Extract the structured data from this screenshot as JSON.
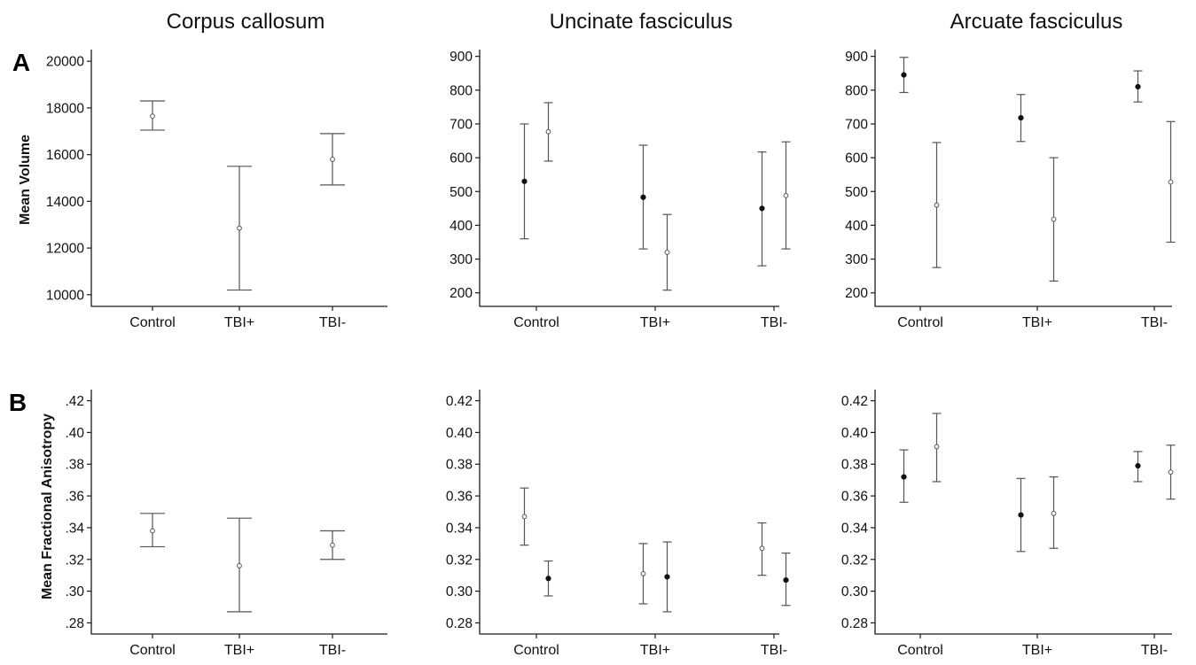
{
  "figure": {
    "column_titles": [
      "Corpus callosum",
      "Uncinate fasciculus",
      "Arcuate fasciculus"
    ],
    "row_labels": [
      "A",
      "B"
    ],
    "y_labels": [
      "Mean Volume",
      "Mean Fractional Anisotropy"
    ]
  },
  "chart_data": [
    {
      "type": "scatter",
      "title": "Corpus callosum",
      "ylabel": "Mean Volume",
      "categories": [
        "Control",
        "TBI+",
        "TBI-"
      ],
      "ylim": [
        9500,
        20500
      ],
      "yticks": [
        10000,
        12000,
        14000,
        16000,
        18000,
        20000
      ],
      "ytick_labels": [
        "10000",
        "12000",
        "14000",
        "16000",
        "18000",
        "20000"
      ],
      "series": [
        {
          "marker": "open",
          "values": [
            17650,
            12850,
            15800
          ],
          "err_low": [
            17050,
            10200,
            14700
          ],
          "err_high": [
            18300,
            15500,
            16900
          ]
        }
      ]
    },
    {
      "type": "scatter",
      "title": "Uncinate fasciculus",
      "ylabel": "",
      "categories": [
        "Control",
        "TBI+",
        "TBI-"
      ],
      "ylim": [
        160,
        920
      ],
      "yticks": [
        200,
        300,
        400,
        500,
        600,
        700,
        800,
        900
      ],
      "ytick_labels": [
        "200",
        "300",
        "400",
        "500",
        "600",
        "700",
        "800",
        "900"
      ],
      "series": [
        {
          "marker": "filled",
          "values": [
            530,
            483,
            450
          ],
          "err_low": [
            360,
            330,
            280
          ],
          "err_high": [
            700,
            637,
            617
          ]
        },
        {
          "marker": "open",
          "values": [
            677,
            320,
            488
          ],
          "err_low": [
            590,
            208,
            330
          ],
          "err_high": [
            763,
            432,
            647
          ]
        }
      ]
    },
    {
      "type": "scatter",
      "title": "Arcuate fasciculus",
      "ylabel": "",
      "categories": [
        "Control",
        "TBI+",
        "TBI-"
      ],
      "ylim": [
        160,
        920
      ],
      "yticks": [
        200,
        300,
        400,
        500,
        600,
        700,
        800,
        900
      ],
      "ytick_labels": [
        "200",
        "300",
        "400",
        "500",
        "600",
        "700",
        "800",
        "900"
      ],
      "series": [
        {
          "marker": "filled",
          "values": [
            845,
            718,
            810
          ],
          "err_low": [
            793,
            648,
            765
          ],
          "err_high": [
            897,
            787,
            857
          ]
        },
        {
          "marker": "open",
          "values": [
            460,
            418,
            528
          ],
          "err_low": [
            275,
            235,
            350
          ],
          "err_high": [
            645,
            600,
            707
          ]
        }
      ]
    },
    {
      "type": "scatter",
      "title": "",
      "ylabel": "Mean Fractional Anisotropy",
      "categories": [
        "Control",
        "TBI+",
        "TBI-"
      ],
      "ylim": [
        0.273,
        0.427
      ],
      "yticks": [
        0.28,
        0.3,
        0.32,
        0.34,
        0.36,
        0.38,
        0.4,
        0.42
      ],
      "ytick_labels": [
        ".28",
        ".30",
        ".32",
        ".34",
        ".36",
        ".38",
        ".40",
        ".42"
      ],
      "series": [
        {
          "marker": "open",
          "values": [
            0.338,
            0.316,
            0.329
          ],
          "err_low": [
            0.328,
            0.287,
            0.32
          ],
          "err_high": [
            0.349,
            0.346,
            0.338
          ]
        }
      ]
    },
    {
      "type": "scatter",
      "title": "",
      "ylabel": "",
      "categories": [
        "Control",
        "TBI+",
        "TBI-"
      ],
      "ylim": [
        0.273,
        0.427
      ],
      "yticks": [
        0.28,
        0.3,
        0.32,
        0.34,
        0.36,
        0.38,
        0.4,
        0.42
      ],
      "ytick_labels": [
        "0.28",
        "0.30",
        "0.32",
        "0.34",
        "0.36",
        "0.38",
        "0.40",
        "0.42"
      ],
      "series": [
        {
          "marker": "open",
          "values": [
            0.347,
            0.311,
            0.327
          ],
          "err_low": [
            0.329,
            0.292,
            0.31
          ],
          "err_high": [
            0.365,
            0.33,
            0.343
          ]
        },
        {
          "marker": "filled",
          "values": [
            0.308,
            0.309,
            0.307
          ],
          "err_low": [
            0.297,
            0.287,
            0.291
          ],
          "err_high": [
            0.319,
            0.331,
            0.324
          ]
        }
      ]
    },
    {
      "type": "scatter",
      "title": "",
      "ylabel": "",
      "categories": [
        "Control",
        "TBI+",
        "TBI-"
      ],
      "ylim": [
        0.273,
        0.427
      ],
      "yticks": [
        0.28,
        0.3,
        0.32,
        0.34,
        0.36,
        0.38,
        0.4,
        0.42
      ],
      "ytick_labels": [
        "0.28",
        "0.30",
        "0.32",
        "0.34",
        "0.36",
        "0.38",
        "0.40",
        "0.42"
      ],
      "series": [
        {
          "marker": "filled",
          "values": [
            0.372,
            0.348,
            0.379
          ],
          "err_low": [
            0.356,
            0.325,
            0.369
          ],
          "err_high": [
            0.389,
            0.371,
            0.388
          ]
        },
        {
          "marker": "open",
          "values": [
            0.391,
            0.349,
            0.375
          ],
          "err_low": [
            0.369,
            0.327,
            0.358
          ],
          "err_high": [
            0.412,
            0.372,
            0.392
          ]
        }
      ]
    }
  ],
  "style": {
    "axis_color": "#1a1a1a",
    "errorbar_color": "#555555",
    "open_marker_stroke": "#555555",
    "filled_marker_color": "#111111"
  }
}
